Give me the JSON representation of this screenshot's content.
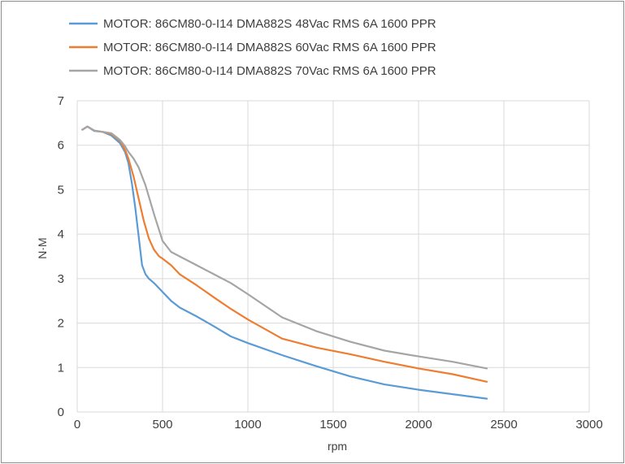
{
  "chart_data": {
    "type": "line",
    "xlabel": "rpm",
    "ylabel": "N·M",
    "xlim": [
      0,
      3000
    ],
    "ylim": [
      0,
      7
    ],
    "xticks": [
      0,
      500,
      1000,
      1500,
      2000,
      2500,
      3000
    ],
    "yticks": [
      0,
      1,
      2,
      3,
      4,
      5,
      6,
      7
    ],
    "grid": true,
    "legend_position": "top",
    "series": [
      {
        "name": "MOTOR:  86CM80-0-I14 DMA882S 48Vac RMS 6A 1600 PPR",
        "color": "#5b9bd5",
        "x": [
          30,
          60,
          100,
          150,
          200,
          250,
          280,
          300,
          320,
          340,
          360,
          380,
          400,
          420,
          450,
          500,
          550,
          600,
          700,
          800,
          900,
          1000,
          1200,
          1400,
          1600,
          1800,
          2000,
          2200,
          2400
        ],
        "y": [
          6.35,
          6.42,
          6.32,
          6.3,
          6.22,
          6.05,
          5.85,
          5.6,
          5.15,
          4.6,
          3.95,
          3.3,
          3.1,
          3.0,
          2.9,
          2.7,
          2.5,
          2.35,
          2.15,
          1.93,
          1.7,
          1.55,
          1.28,
          1.03,
          0.8,
          0.62,
          0.5,
          0.4,
          0.3
        ]
      },
      {
        "name": "MOTOR:  86CM80-0-I14  DMA882S 60Vac RMS 6A 1600 PPR",
        "color": "#ed7d31",
        "x": [
          30,
          60,
          100,
          150,
          200,
          250,
          280,
          300,
          330,
          360,
          390,
          420,
          450,
          480,
          500,
          550,
          600,
          700,
          800,
          900,
          1000,
          1200,
          1400,
          1600,
          1800,
          2000,
          2200,
          2400
        ],
        "y": [
          6.35,
          6.42,
          6.33,
          6.3,
          6.25,
          6.1,
          5.9,
          5.7,
          5.3,
          4.8,
          4.3,
          3.9,
          3.65,
          3.5,
          3.45,
          3.3,
          3.1,
          2.85,
          2.58,
          2.32,
          2.08,
          1.65,
          1.45,
          1.3,
          1.13,
          0.98,
          0.85,
          0.68
        ]
      },
      {
        "name": "MOTOR:  86CM80-0-I14  DMA882S 70Vac RMS 6A 1600 PPR",
        "color": "#a5a5a5",
        "x": [
          30,
          60,
          100,
          150,
          200,
          250,
          280,
          300,
          330,
          360,
          400,
          450,
          500,
          550,
          600,
          700,
          800,
          900,
          1000,
          1200,
          1400,
          1600,
          1800,
          2000,
          2200,
          2400
        ],
        "y": [
          6.35,
          6.42,
          6.33,
          6.3,
          6.27,
          6.12,
          5.98,
          5.85,
          5.7,
          5.5,
          5.1,
          4.45,
          3.85,
          3.6,
          3.5,
          3.3,
          3.1,
          2.9,
          2.65,
          2.13,
          1.82,
          1.58,
          1.38,
          1.25,
          1.13,
          0.98
        ]
      }
    ]
  }
}
